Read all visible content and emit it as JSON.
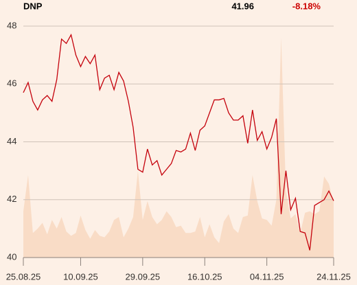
{
  "chart_data": {
    "type": "line",
    "title": "DNP",
    "last_price": 41.96,
    "change": "-8.18%",
    "categories": [
      "25.08.25",
      null,
      null,
      null,
      null,
      null,
      null,
      null,
      null,
      null,
      null,
      null,
      "10.09.25",
      null,
      null,
      null,
      null,
      null,
      null,
      null,
      null,
      null,
      null,
      null,
      null,
      "29.09.25",
      null,
      null,
      null,
      null,
      null,
      null,
      null,
      null,
      null,
      null,
      null,
      null,
      "16.10.25",
      null,
      null,
      null,
      null,
      null,
      null,
      null,
      null,
      null,
      null,
      null,
      null,
      "04.11.25",
      null,
      null,
      null,
      null,
      null,
      null,
      null,
      null,
      null,
      null,
      null,
      null,
      null,
      "24.11.25"
    ],
    "values": [
      45.7,
      46.05,
      45.4,
      45.1,
      45.45,
      45.6,
      45.4,
      46.15,
      47.55,
      47.4,
      47.7,
      47.0,
      46.6,
      46.95,
      46.7,
      47.0,
      45.8,
      46.2,
      46.3,
      45.8,
      46.4,
      46.1,
      45.4,
      44.5,
      43.05,
      42.95,
      43.75,
      43.2,
      43.35,
      42.85,
      43.05,
      43.25,
      43.7,
      43.65,
      43.75,
      44.3,
      43.7,
      44.4,
      44.55,
      45.0,
      45.45,
      45.45,
      45.5,
      45.0,
      44.75,
      44.75,
      44.9,
      43.95,
      45.1,
      44.05,
      44.35,
      43.75,
      44.15,
      44.8,
      41.5,
      43.0,
      41.65,
      42.05,
      40.9,
      40.85,
      40.25,
      41.8,
      41.9,
      42.0,
      42.3,
      41.96
    ],
    "color": "#c4000b",
    "area_values": [
      41.6,
      42.85,
      40.85,
      41.0,
      41.2,
      40.8,
      41.3,
      41.0,
      41.4,
      40.9,
      40.75,
      40.85,
      41.45,
      40.95,
      40.65,
      40.95,
      40.75,
      40.7,
      40.9,
      41.3,
      41.4,
      40.7,
      41.0,
      41.4,
      43.0,
      41.3,
      41.95,
      41.4,
      41.15,
      41.3,
      41.6,
      41.4,
      41.05,
      41.1,
      40.85,
      40.85,
      40.9,
      41.4,
      40.7,
      41.15,
      40.7,
      40.5,
      41.25,
      41.5,
      41.0,
      40.85,
      41.4,
      41.45,
      42.85,
      41.95,
      41.35,
      41.3,
      41.1,
      42.0,
      47.6,
      42.3,
      41.35,
      41.5,
      40.85,
      41.55,
      41.6,
      41.5,
      41.6,
      42.8,
      42.55,
      41.9
    ],
    "area_color": "#f9dcc6",
    "ylim": [
      40,
      48
    ],
    "yticks": [
      40,
      42,
      44,
      46,
      48
    ],
    "grid": true
  }
}
